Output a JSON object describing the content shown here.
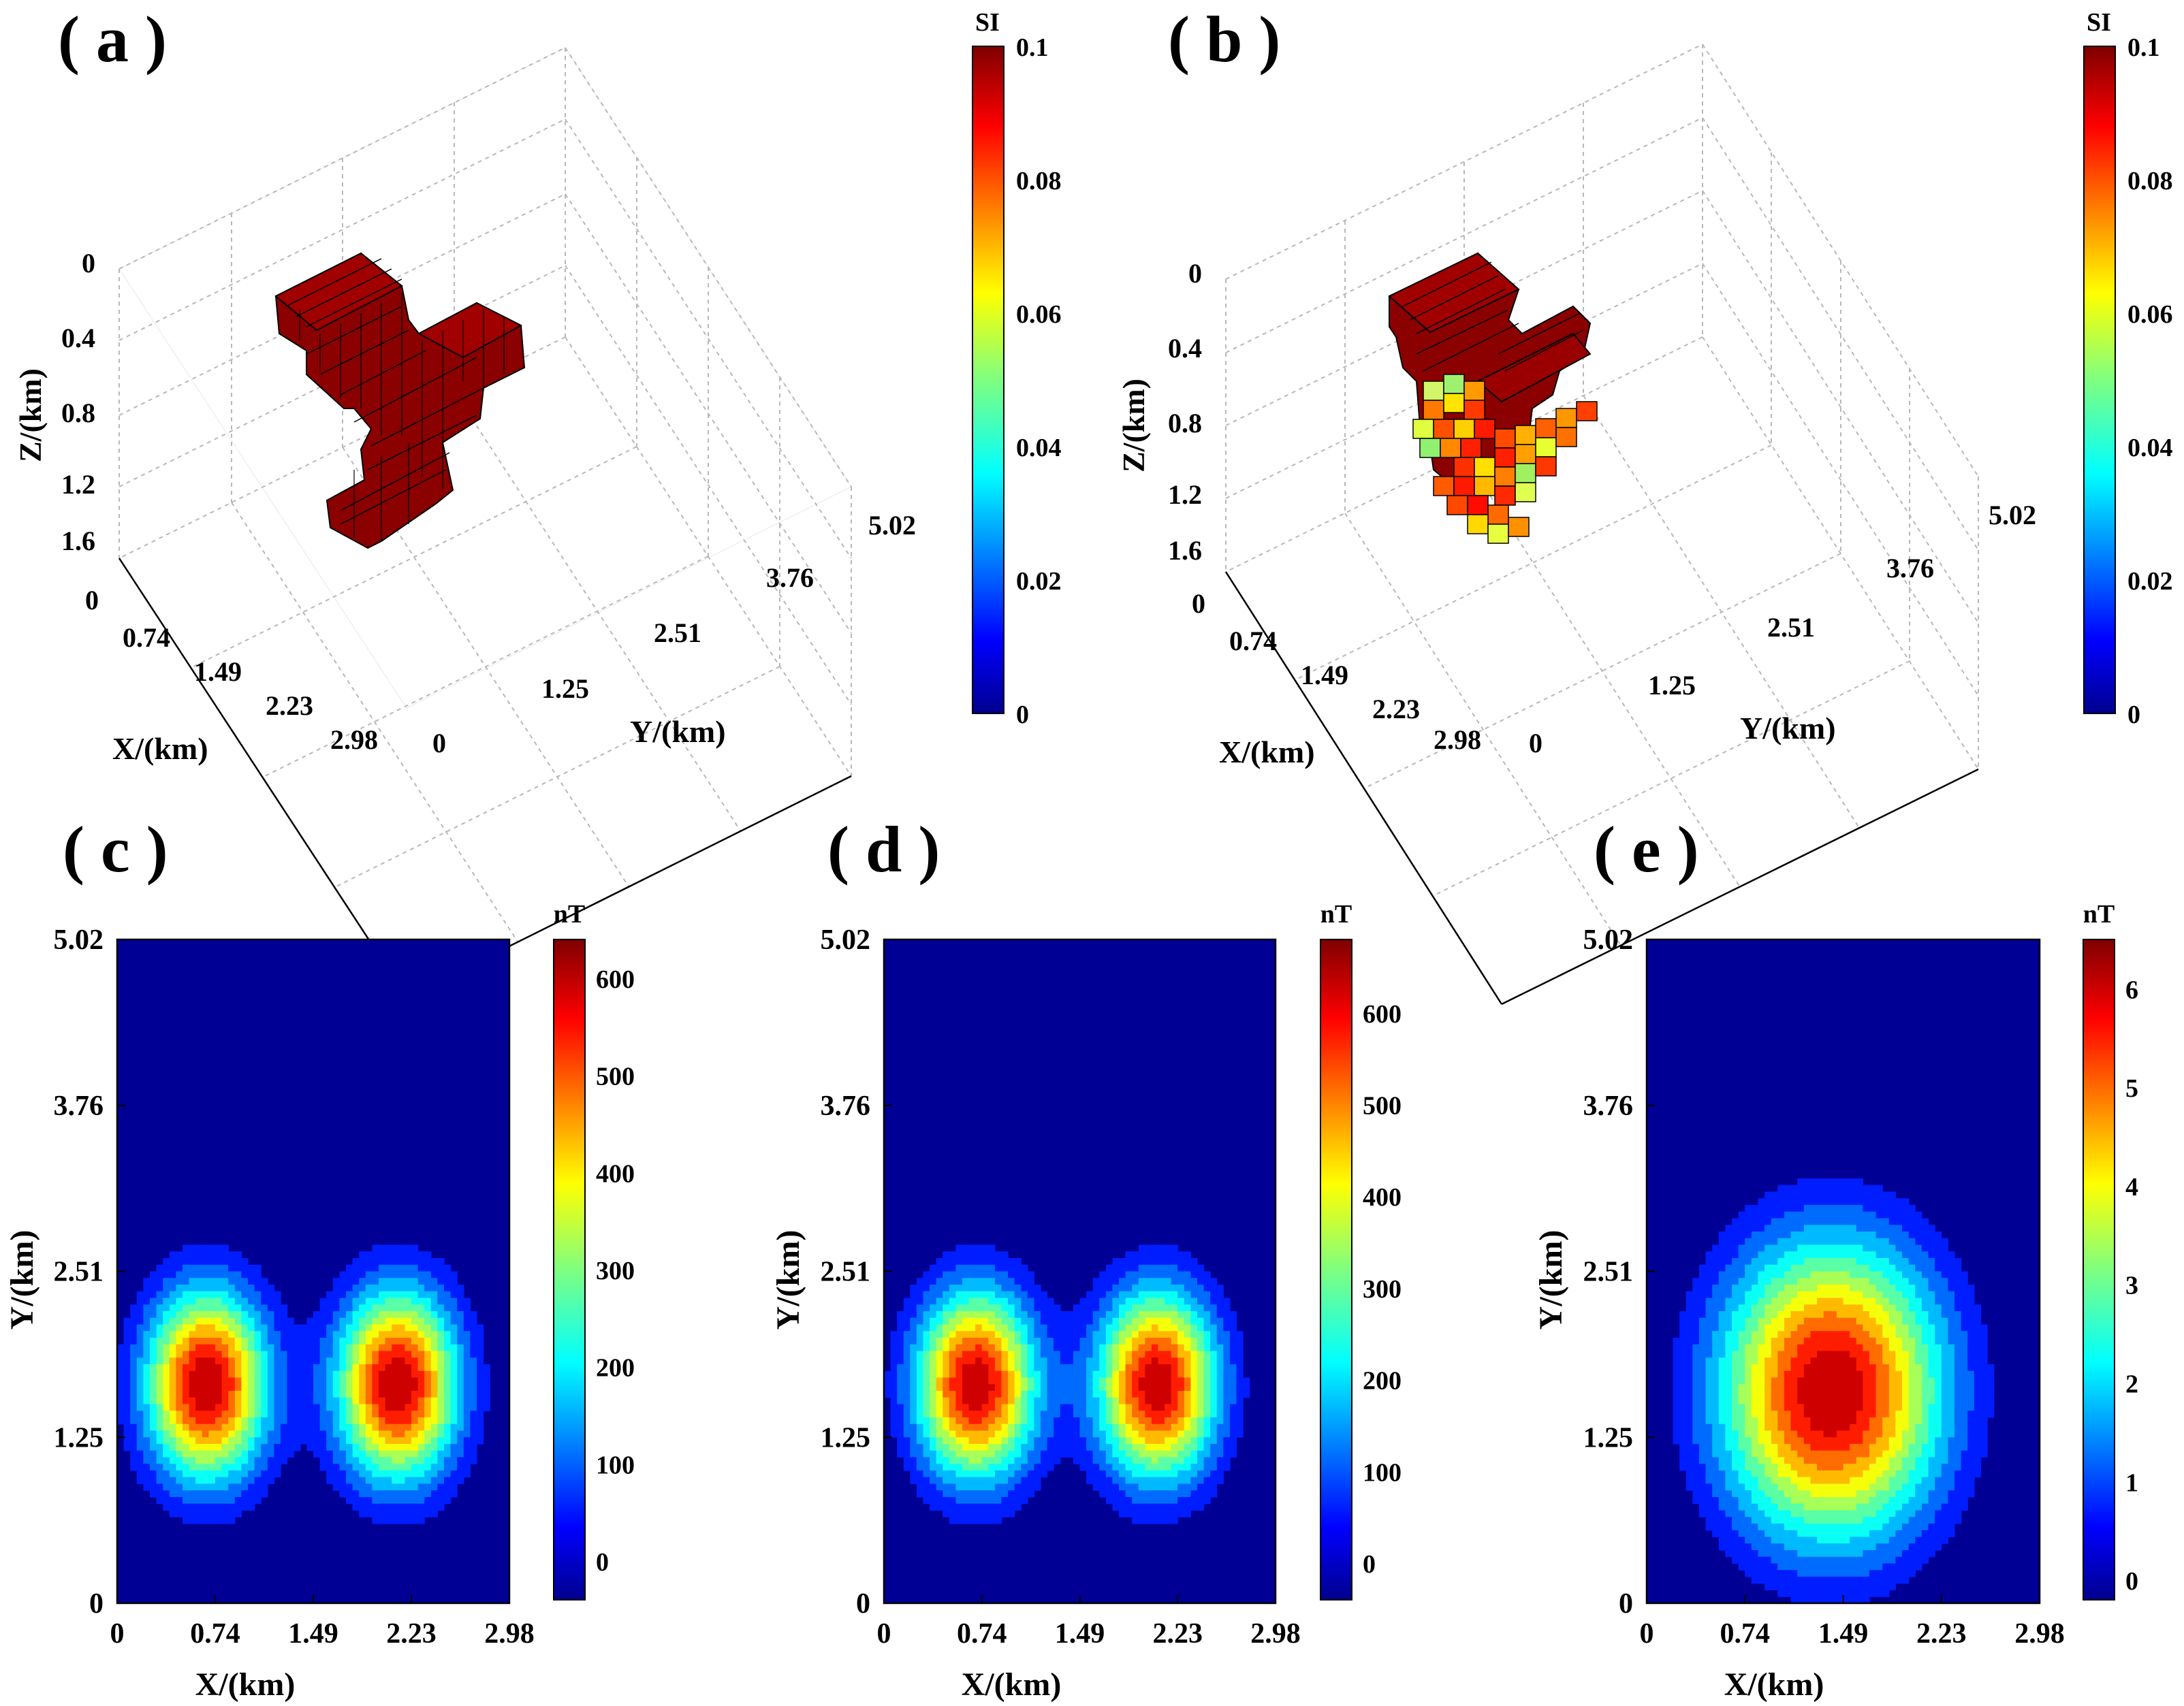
{
  "panels": {
    "a": {
      "label": "( a )"
    },
    "b": {
      "label": "( b )"
    },
    "c": {
      "label": "( c )"
    },
    "d": {
      "label": "( d )"
    },
    "e": {
      "label": "( e )"
    }
  },
  "chart_data": [
    {
      "id": "a",
      "type": "voxel3d",
      "title": "( a )",
      "xlabel": "X/(km)",
      "ylabel": "Y/(km)",
      "zlabel": "Z/(km)",
      "xticks": [
        "0",
        "0.74",
        "1.49",
        "2.23",
        "2.98"
      ],
      "yticks": [
        "0",
        "1.25",
        "2.51",
        "3.76",
        "5.02"
      ],
      "zticks": [
        "0",
        "0.4",
        "0.8",
        "1.2",
        "1.6"
      ],
      "colorbar": {
        "label": "SI",
        "ticks": [
          "0",
          "0.02",
          "0.04",
          "0.06",
          "0.08",
          "0.1"
        ],
        "range": [
          0,
          0.1
        ]
      },
      "voxel_value": 0.1
    },
    {
      "id": "b",
      "type": "voxel3d",
      "title": "( b )",
      "xlabel": "X/(km)",
      "ylabel": "Y/(km)",
      "zlabel": "Z/(km)",
      "xticks": [
        "0",
        "0.74",
        "1.49",
        "2.23",
        "2.98"
      ],
      "yticks": [
        "0",
        "1.25",
        "2.51",
        "3.76",
        "5.02"
      ],
      "zticks": [
        "0",
        "0.4",
        "0.8",
        "1.2",
        "1.6"
      ],
      "colorbar": {
        "label": "SI",
        "ticks": [
          "0",
          "0.02",
          "0.04",
          "0.06",
          "0.08",
          "0.1"
        ],
        "range": [
          0,
          0.1
        ]
      },
      "voxel_value_range": [
        0.05,
        0.1
      ]
    },
    {
      "id": "c",
      "type": "heatmap",
      "title": "( c )",
      "xlabel": "X/(km)",
      "ylabel": "Y/(km)",
      "xticks": [
        "0",
        "0.74",
        "1.49",
        "2.23",
        "2.98"
      ],
      "yticks": [
        "0",
        "1.25",
        "2.51",
        "3.76",
        "5.02"
      ],
      "xlim": [
        0,
        2.98
      ],
      "ylim": [
        0,
        5.02
      ],
      "colorbar": {
        "label": "nT",
        "ticks": [
          "0",
          "100",
          "200",
          "300",
          "400",
          "500",
          "600"
        ],
        "range": [
          -40,
          640
        ]
      },
      "peaks": [
        {
          "x": 0.68,
          "y": 1.65,
          "amp": 640,
          "sx": 0.32,
          "sy": 0.5
        },
        {
          "x": 2.13,
          "y": 1.65,
          "amp": 640,
          "sx": 0.32,
          "sy": 0.5
        }
      ]
    },
    {
      "id": "d",
      "type": "heatmap",
      "title": "( d )",
      "xlabel": "X/(km)",
      "ylabel": "Y/(km)",
      "xticks": [
        "0",
        "0.74",
        "1.49",
        "2.23",
        "2.98"
      ],
      "yticks": [
        "0",
        "1.25",
        "2.51",
        "3.76",
        "5.02"
      ],
      "xlim": [
        0,
        2.98
      ],
      "ylim": [
        0,
        5.02
      ],
      "colorbar": {
        "label": "nT",
        "ticks": [
          "0",
          "100",
          "200",
          "300",
          "400",
          "500",
          "600"
        ],
        "range": [
          -40,
          680
        ]
      },
      "peaks": [
        {
          "x": 0.7,
          "y": 1.65,
          "amp": 670,
          "sx": 0.32,
          "sy": 0.5
        },
        {
          "x": 2.08,
          "y": 1.65,
          "amp": 670,
          "sx": 0.32,
          "sy": 0.5
        }
      ]
    },
    {
      "id": "e",
      "type": "heatmap",
      "title": "( e )",
      "xlabel": "X/(km)",
      "ylabel": "Y/(km)",
      "xticks": [
        "0",
        "0.74",
        "1.49",
        "2.23",
        "2.98"
      ],
      "yticks": [
        "0",
        "1.25",
        "2.51",
        "3.76",
        "5.02"
      ],
      "xlim": [
        0,
        2.98
      ],
      "ylim": [
        0,
        5.02
      ],
      "colorbar": {
        "label": "nT",
        "ticks": [
          "0",
          "1",
          "2",
          "3",
          "4",
          "5",
          "6"
        ],
        "range": [
          -0.2,
          6.5
        ]
      },
      "peaks": [
        {
          "x": 1.4,
          "y": 1.6,
          "amp": 6.5,
          "sx": 0.6,
          "sy": 0.8
        }
      ]
    }
  ]
}
